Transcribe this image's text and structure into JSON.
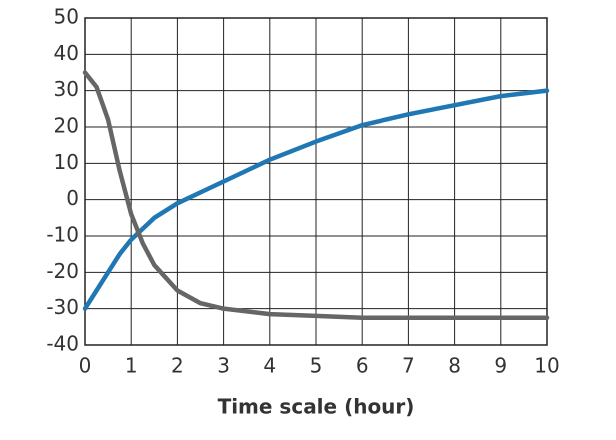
{
  "chart_data": {
    "type": "line",
    "x_label": "Time scale (hour)",
    "x": [
      0,
      0.25,
      0.5,
      0.75,
      1,
      1.25,
      1.5,
      2,
      2.5,
      3,
      4,
      5,
      6,
      7,
      8,
      9,
      10
    ],
    "series": [
      {
        "color": "#1f77b4",
        "values": [
          -30,
          -25,
          -20,
          -15,
          -11,
          -8,
          -5,
          -1,
          2,
          5,
          11,
          16,
          20.5,
          23.5,
          26,
          28.5,
          30
        ]
      },
      {
        "color": "#666666",
        "values": [
          35,
          31,
          22,
          8,
          -4,
          -12,
          -18,
          -25,
          -28.5,
          -30,
          -31.5,
          -32,
          -32.5,
          -32.5,
          -32.5,
          -32.5,
          -32.5
        ]
      }
    ],
    "xlim": [
      0,
      10
    ],
    "xticks": [
      0,
      1,
      2,
      3,
      4,
      5,
      6,
      7,
      8,
      9,
      10
    ],
    "ylim": [
      -40,
      50
    ],
    "yticks": [
      -40,
      -30,
      -20,
      -10,
      0,
      10,
      20,
      30,
      40,
      50
    ],
    "grid": true
  }
}
